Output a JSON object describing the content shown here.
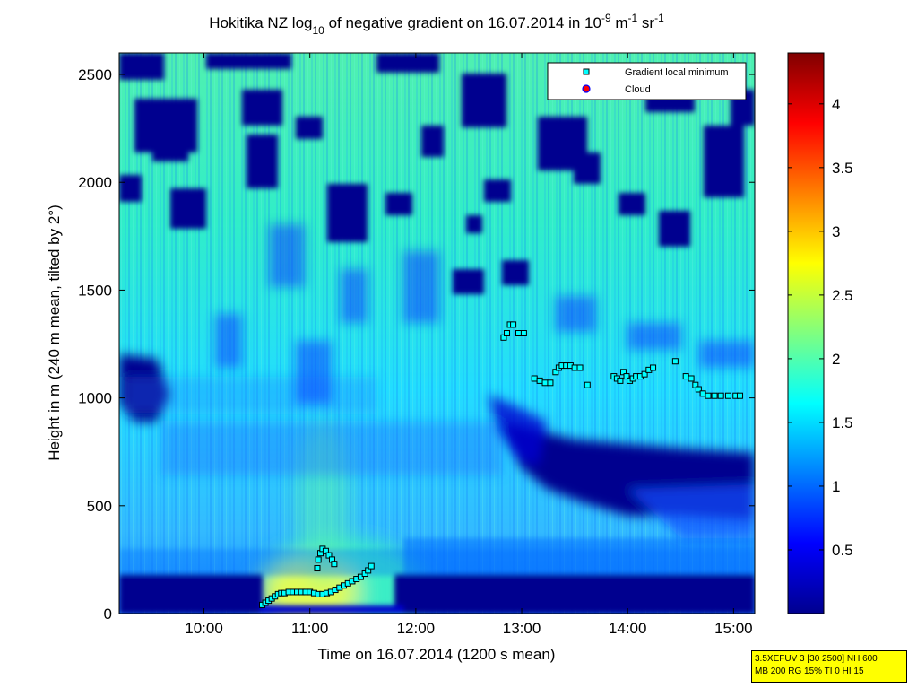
{
  "chart_data": {
    "type": "heatmap",
    "title_parts": {
      "prefix": "Hokitika NZ log",
      "sub": "10",
      "middle": " of negative gradient on 16.07.2014 in 10",
      "sup1": "-9",
      "unit1": " m",
      "sup2": "-1",
      "unit2": " sr",
      "sup3": "-1"
    },
    "xlabel": "Time on 16.07.2014 (1200 s mean)",
    "ylabel": "Height in m (240 m mean, tilted by 2°)",
    "x_ticks": [
      "10:00",
      "11:00",
      "12:00",
      "13:00",
      "14:00",
      "15:00"
    ],
    "x_tick_hours": [
      10,
      11,
      12,
      13,
      14,
      15
    ],
    "xlim_hours": [
      9.2,
      15.2
    ],
    "y_ticks": [
      "0",
      "500",
      "1000",
      "1500",
      "2000",
      "2500"
    ],
    "y_tick_values": [
      0,
      500,
      1000,
      1500,
      2000,
      2500
    ],
    "ylim": [
      0,
      2600
    ],
    "colorbar": {
      "ticks": [
        "0.5",
        "1",
        "1.5",
        "2",
        "2.5",
        "3",
        "3.5",
        "4"
      ],
      "tick_values": [
        0.5,
        1,
        1.5,
        2,
        2.5,
        3,
        3.5,
        4
      ],
      "range": [
        0,
        4.4
      ],
      "colormap": "jet"
    },
    "legend": {
      "placement": "top-right",
      "entries": [
        {
          "label": "Gradient local minimum",
          "marker": "square",
          "color": "#00ffff"
        },
        {
          "label": "Cloud",
          "marker": "circle",
          "color": "#ff0000"
        }
      ]
    },
    "series": [
      {
        "name": "Gradient local minimum",
        "points": [
          [
            10.55,
            40
          ],
          [
            10.58,
            50
          ],
          [
            10.61,
            60
          ],
          [
            10.64,
            70
          ],
          [
            10.67,
            80
          ],
          [
            10.7,
            90
          ],
          [
            10.73,
            95
          ],
          [
            10.76,
            95
          ],
          [
            10.8,
            100
          ],
          [
            10.84,
            100
          ],
          [
            10.88,
            100
          ],
          [
            10.92,
            100
          ],
          [
            10.96,
            100
          ],
          [
            11.0,
            100
          ],
          [
            11.04,
            95
          ],
          [
            11.08,
            90
          ],
          [
            11.12,
            90
          ],
          [
            11.16,
            95
          ],
          [
            11.2,
            100
          ],
          [
            11.24,
            110
          ],
          [
            11.28,
            120
          ],
          [
            11.32,
            130
          ],
          [
            11.36,
            140
          ],
          [
            11.4,
            150
          ],
          [
            11.44,
            160
          ],
          [
            11.48,
            170
          ],
          [
            11.52,
            185
          ],
          [
            11.55,
            200
          ],
          [
            11.58,
            220
          ],
          [
            11.08,
            250
          ],
          [
            11.1,
            280
          ],
          [
            11.12,
            300
          ],
          [
            11.15,
            290
          ],
          [
            11.18,
            270
          ],
          [
            11.21,
            250
          ],
          [
            11.23,
            230
          ],
          [
            11.07,
            210
          ],
          [
            12.83,
            1280
          ],
          [
            12.86,
            1300
          ],
          [
            12.89,
            1340
          ],
          [
            12.92,
            1340
          ],
          [
            12.97,
            1300
          ],
          [
            13.02,
            1300
          ],
          [
            13.12,
            1090
          ],
          [
            13.17,
            1080
          ],
          [
            13.22,
            1070
          ],
          [
            13.27,
            1070
          ],
          [
            13.32,
            1120
          ],
          [
            13.35,
            1140
          ],
          [
            13.38,
            1150
          ],
          [
            13.42,
            1150
          ],
          [
            13.46,
            1150
          ],
          [
            13.5,
            1140
          ],
          [
            13.55,
            1140
          ],
          [
            13.62,
            1060
          ],
          [
            13.87,
            1100
          ],
          [
            13.9,
            1090
          ],
          [
            13.93,
            1080
          ],
          [
            13.96,
            1120
          ],
          [
            13.99,
            1100
          ],
          [
            14.02,
            1080
          ],
          [
            14.05,
            1090
          ],
          [
            14.08,
            1100
          ],
          [
            14.12,
            1100
          ],
          [
            14.16,
            1110
          ],
          [
            14.2,
            1130
          ],
          [
            14.24,
            1140
          ],
          [
            14.45,
            1170
          ],
          [
            14.55,
            1100
          ],
          [
            14.6,
            1090
          ],
          [
            14.64,
            1060
          ],
          [
            14.67,
            1040
          ],
          [
            14.71,
            1020
          ],
          [
            14.76,
            1010
          ],
          [
            14.82,
            1010
          ],
          [
            14.88,
            1010
          ],
          [
            14.95,
            1010
          ],
          [
            15.02,
            1010
          ],
          [
            15.06,
            1010
          ]
        ]
      },
      {
        "name": "Cloud",
        "points": []
      }
    ]
  },
  "note_box": {
    "line1": "3.5XEFUV 3 [30 2500] NH 600",
    "line2": "MB 200 RG 15% TI 0 HI 15",
    "background": "#ffff00"
  }
}
